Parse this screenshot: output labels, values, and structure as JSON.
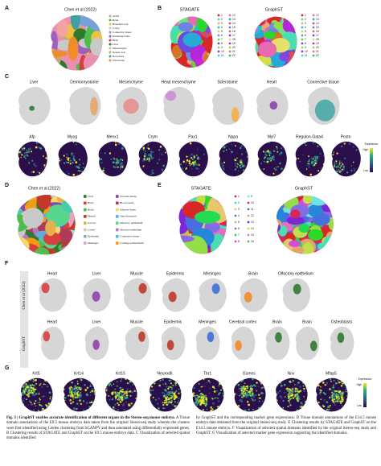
{
  "panels": {
    "A": {
      "label": "A",
      "title": "Chen et al (2022)",
      "legend": [
        "AGM",
        "Brain",
        "Branchial arch",
        "Cavity",
        "Connective tissue",
        "Dermomyotome",
        "Heart",
        "Liver",
        "Mesenchyme",
        "Neural crest",
        "Notochord",
        "Sclerotome"
      ]
    },
    "B": {
      "label": "B",
      "titles": [
        "STAGATE",
        "GraphST"
      ],
      "legend": [
        1,
        2,
        3,
        4,
        5,
        6,
        7,
        8,
        9,
        10,
        11,
        12,
        13,
        14,
        15,
        16,
        17,
        18,
        19,
        20,
        21,
        22
      ]
    },
    "C": {
      "label": "C",
      "domains": [
        "Liver",
        "Dermomyotome",
        "Mesenchyme",
        "Head mesenchyme",
        "Sclerotome",
        "Heart",
        "Connective tissue"
      ],
      "genes": [
        "Afp",
        "Myog",
        "Meox1",
        "Crym",
        "Pax1",
        "Nppa",
        "Myl7",
        "Regulon-Gata4",
        "Postn"
      ],
      "colorbar": {
        "title": "Expression",
        "high": "High",
        "low": "Low"
      }
    },
    "D": {
      "label": "D",
      "title": "Chen et al (2022)",
      "legend": [
        "Liver",
        "Heart",
        "Brain",
        "Muscle",
        "GI tract",
        "Cavity",
        "Epidermis",
        "Meninges",
        "Choroid plexus",
        "Blood vessel",
        "Adipose tissue",
        "Smooth muscle",
        "Olfactory epithelium",
        "Mucosal epithelium",
        "Connective tissue",
        "Cartilage primordium"
      ]
    },
    "E": {
      "label": "E",
      "titles": [
        "STAGATE",
        "GraphST"
      ],
      "legend": [
        1,
        2,
        3,
        4,
        5,
        6,
        7,
        8,
        9,
        10,
        11,
        12,
        13,
        14,
        15,
        16
      ]
    },
    "F": {
      "label": "F",
      "rows": [
        {
          "label": "Chen et al (2022)",
          "domains": [
            "Heart",
            "Liver",
            "Muscle",
            "Epidermis",
            "Meninges",
            "Brain",
            "Olfactory epithelium"
          ]
        },
        {
          "label": "GraphST",
          "domains": [
            "Heart",
            "Liver",
            "Muscle",
            "Epidermis",
            "Meninges",
            "Cerebral cortex",
            "Brain",
            "Brain",
            "Osteoblasts"
          ]
        }
      ]
    },
    "G": {
      "label": "G",
      "genes": [
        "Krt5",
        "Krt14",
        "Krt15",
        "Neurod6",
        "Tbr1",
        "Eomes",
        "Nov",
        "Mfap5"
      ],
      "colorbar": {
        "title": "Expression",
        "high": "High",
        "low": "Low"
      }
    }
  },
  "caption": {
    "title": "Fig. 3 | GraphST enables accurate identification of different organs in the Stereo-seq mouse embryo.",
    "left": "A Tissue domain annotations of the E9.5 mouse embryo data taken from the original Stereo-seq study wherein the clusters were first identified using Leiden clustering from SCANPY and then annotated using differentially expressed genes. B Clustering results of STAGATE and GraphST on the E9.5 mouse embryo data. C Visualization of selected spatial domains identified",
    "right": "by GraphST and the corresponding marker gene expressions. D Tissue domain annotations of the E14.5 mouse embryo data obtained from the original Stereo-seq study. E Clustering results by STAGATE and GraphST on the E14.5 mouse embryo. F Visualization of selected spatial domains identified by the original Stereo-seq study and GraphST. G Visualization of selected marker gene expression supporting the identified domains."
  }
}
